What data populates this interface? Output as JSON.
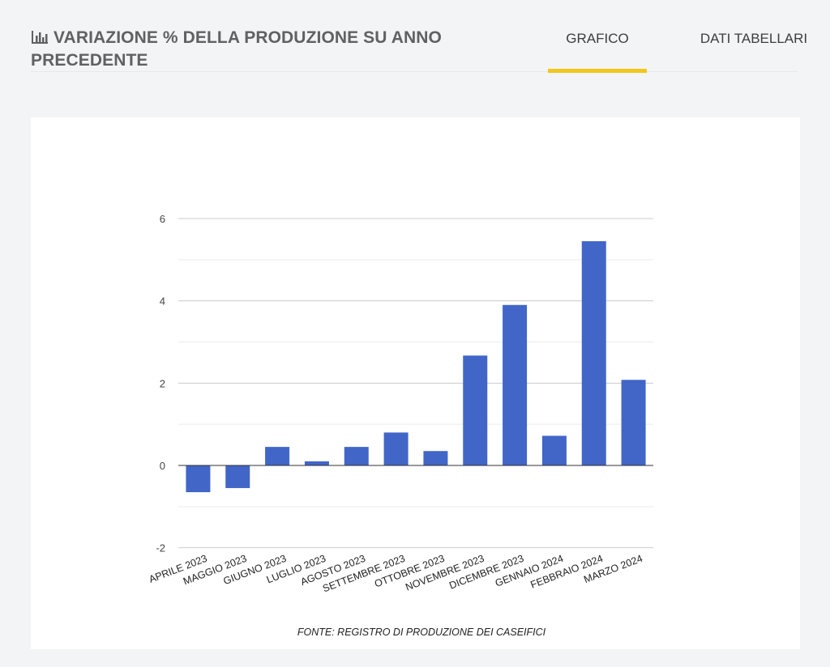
{
  "header": {
    "title": "VARIAZIONE % DELLA PRODUZIONE SU ANNO PRECEDENTE",
    "icon": "bar-chart-icon"
  },
  "tabs": [
    {
      "label": "GRAFICO",
      "active": true
    },
    {
      "label": "DATI TABELLARI",
      "active": false
    }
  ],
  "colors": {
    "bar": "#4166c8",
    "accent": "#f2c71c"
  },
  "chart_data": {
    "type": "bar",
    "categories": [
      "APRILE 2023",
      "MAGGIO 2023",
      "GIUGNO 2023",
      "LUGLIO 2023",
      "AGOSTO 2023",
      "SETTEMBRE 2023",
      "OTTOBRE 2023",
      "NOVEMBRE 2023",
      "DICEMBRE 2023",
      "GENNAIO 2024",
      "FEBBRAIO 2024",
      "MARZO 2024"
    ],
    "values": [
      -0.65,
      -0.55,
      0.45,
      0.1,
      0.45,
      0.8,
      0.35,
      2.67,
      3.9,
      0.72,
      5.45,
      2.08
    ],
    "ylim": [
      -2,
      6.8
    ],
    "yticks": [
      "6",
      "4",
      "2",
      "0",
      "-2"
    ],
    "ytick_values": [
      6,
      4,
      2,
      0,
      -2
    ],
    "minor_grid": [
      5,
      3,
      1,
      -1
    ],
    "source": "FONTE: REGISTRO DI PRODUZIONE DEI CASEIFICI",
    "grid": true,
    "legend": "none"
  }
}
